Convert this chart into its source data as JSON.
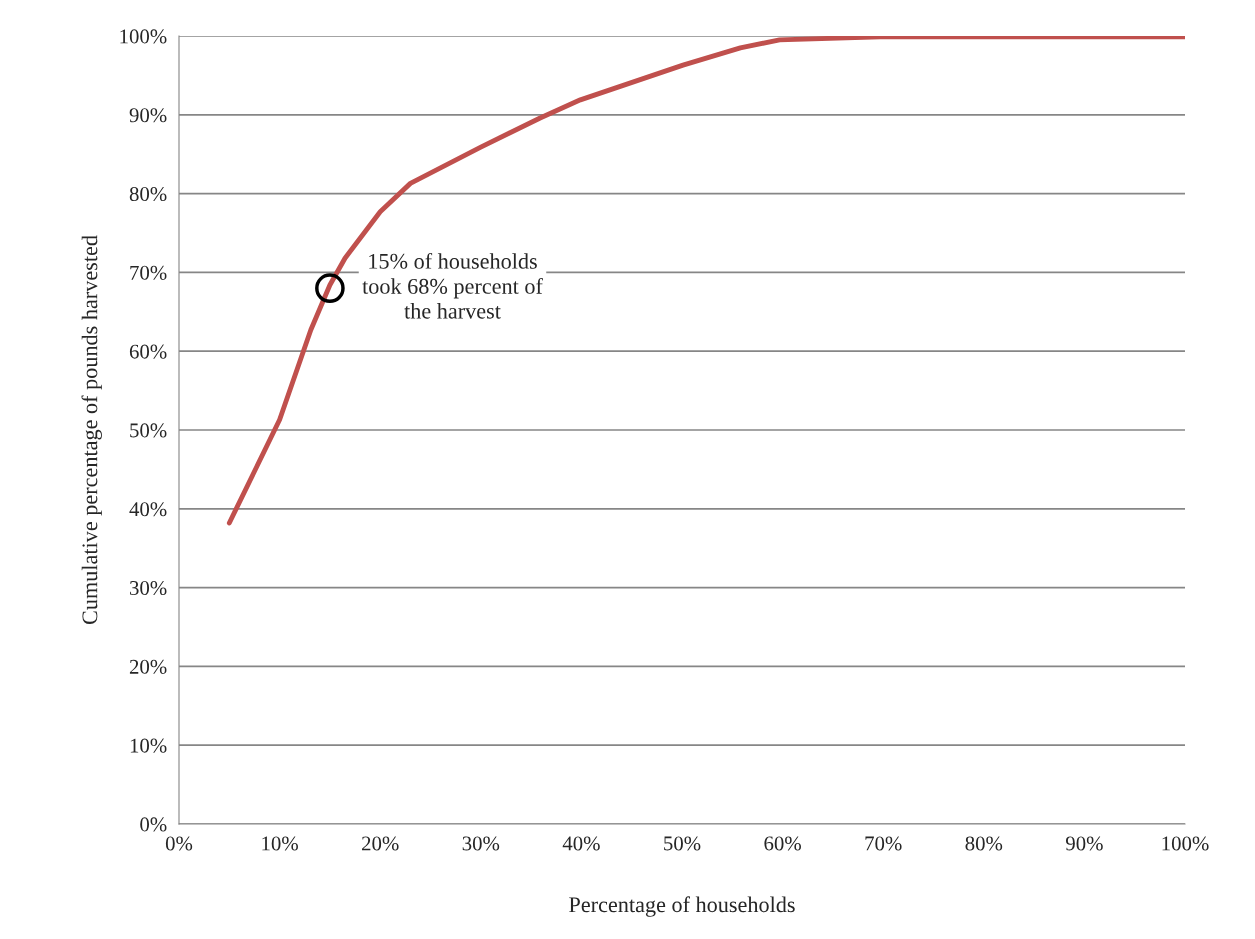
{
  "chart_data": {
    "type": "line",
    "xlabel": "Percentage of households",
    "ylabel": "Cumulative percentage of pounds harvested",
    "series": [
      {
        "color": "#c0504d",
        "x": [
          5,
          10,
          13.1,
          15,
          16.5,
          20,
          23,
          30,
          35.9,
          39.9,
          50.1,
          55.8,
          59.7,
          69.7,
          100
        ],
        "values": [
          38.2,
          51.3,
          62.7,
          68.4,
          71.8,
          77.7,
          81.3,
          85.9,
          89.6,
          91.9,
          96.3,
          98.5,
          99.5,
          99.9,
          99.9
        ]
      }
    ],
    "xlim": [
      0,
      100
    ],
    "xticks": [
      {
        "value": 0,
        "label": "0%"
      },
      {
        "value": 10,
        "label": "10%"
      },
      {
        "value": 20,
        "label": "20%"
      },
      {
        "value": 30,
        "label": "30%"
      },
      {
        "value": 40,
        "label": "40%"
      },
      {
        "value": 50,
        "label": "50%"
      },
      {
        "value": 60,
        "label": "60%"
      },
      {
        "value": 70,
        "label": "70%"
      },
      {
        "value": 80,
        "label": "80%"
      },
      {
        "value": 90,
        "label": "90%"
      },
      {
        "value": 100,
        "label": "100%"
      }
    ],
    "ylim": [
      0,
      100
    ],
    "yticks": [
      {
        "value": 0,
        "label": "0%"
      },
      {
        "value": 10,
        "label": "10%"
      },
      {
        "value": 20,
        "label": "20%"
      },
      {
        "value": 30,
        "label": "30%"
      },
      {
        "value": 40,
        "label": "40%"
      },
      {
        "value": 50,
        "label": "50%"
      },
      {
        "value": 60,
        "label": "60%"
      },
      {
        "value": 70,
        "label": "70%"
      },
      {
        "value": 80,
        "label": "80%"
      },
      {
        "value": 90,
        "label": "90%"
      },
      {
        "value": 100,
        "label": "100%"
      }
    ],
    "grid": "y",
    "legend": false,
    "marker": "none",
    "line_style": "solid",
    "annotations": [
      {
        "text": "15% of households\ntook 68% percent of\nthe harvest",
        "x": 15,
        "y": 68
      }
    ]
  }
}
